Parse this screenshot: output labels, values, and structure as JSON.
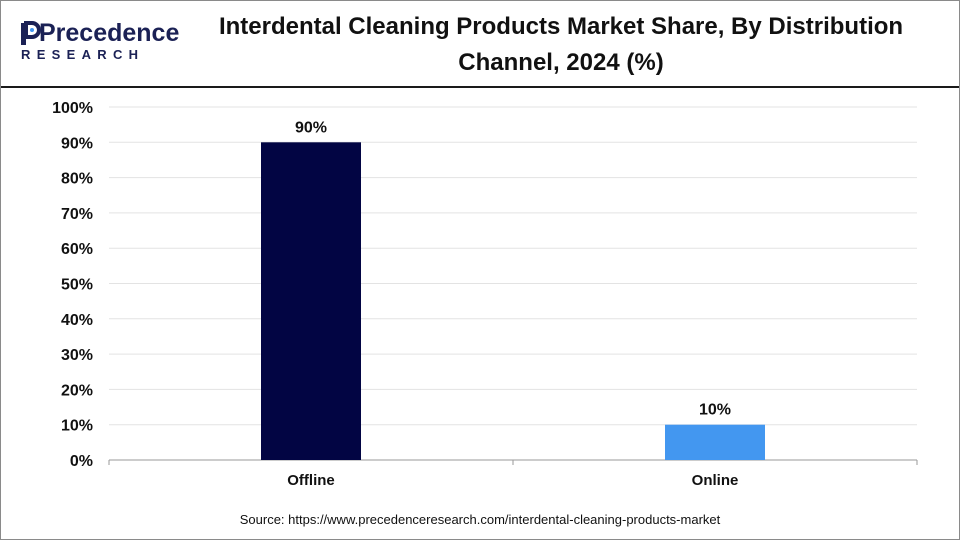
{
  "brand": {
    "name_top": "Precedence",
    "name_bottom": "RESEARCH",
    "color": "#1b2155"
  },
  "title": "Interdental Cleaning Products Market Share, By Distribution Channel, 2024 (%)",
  "source": "Source: https://www.precedenceresearch.com/interdental-cleaning-products-market",
  "chart_data": {
    "type": "bar",
    "title": "Interdental Cleaning Products Market Share, By Distribution Channel, 2024 (%)",
    "categories": [
      "Offline",
      "Online"
    ],
    "values": [
      90,
      10
    ],
    "value_labels": [
      "90%",
      "10%"
    ],
    "colors": [
      "#020543",
      "#4397f0"
    ],
    "xlabel": "",
    "ylabel": "",
    "ylim": [
      0,
      100
    ],
    "yticks": [
      "0%",
      "10%",
      "20%",
      "30%",
      "40%",
      "50%",
      "60%",
      "70%",
      "80%",
      "90%",
      "100%"
    ],
    "grid": true,
    "legend": "none"
  }
}
